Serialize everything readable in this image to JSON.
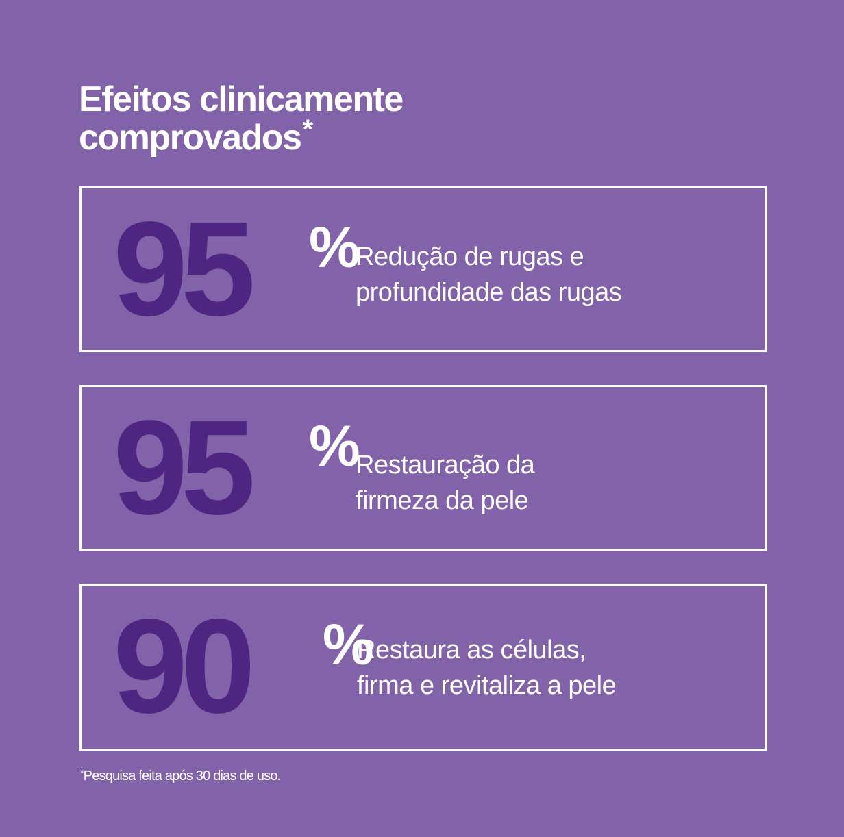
{
  "colors": {
    "background": "#8262a9",
    "number": "#4e2682",
    "text": "#ffffff",
    "border": "#ffffff"
  },
  "title": {
    "line1": "Efeitos clinicamente",
    "line2": "comprovados",
    "asterisk": "*"
  },
  "cards": [
    {
      "number": "95",
      "percent": "%",
      "desc_line1": "Redução de rugas e",
      "desc_line2": "profundidade das rugas"
    },
    {
      "number": "95",
      "percent": "%",
      "desc_line1": "Restauração da",
      "desc_line2": "firmeza da pele"
    },
    {
      "number": "90",
      "percent": "%",
      "desc_line1": "Restaura as células,",
      "desc_line2": "firma e revitaliza a pele"
    }
  ],
  "footnote": {
    "asterisk": "*",
    "text": "Pesquisa feita após 30 dias de uso."
  }
}
